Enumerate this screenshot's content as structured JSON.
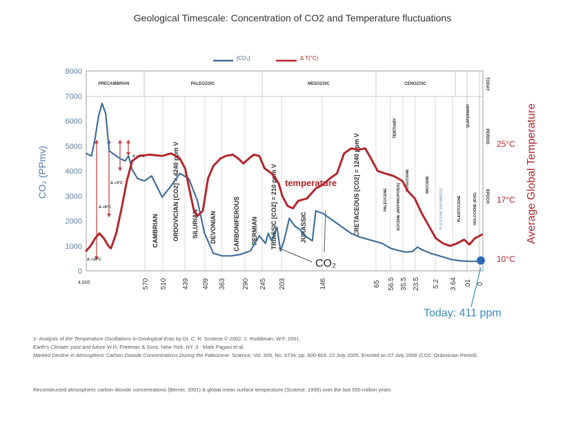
{
  "chart_data": {
    "type": "line",
    "title": "Geological Timescale: Concentration of CO2 and Temperature fluctuations",
    "ylabel_left": "CO₂ (PPmv)",
    "ylabel_right": "Average Global Temperature",
    "ylim_left": [
      0,
      8000
    ],
    "left_ticks": [
      "0",
      "1000",
      "2000",
      "3000",
      "4000",
      "5000",
      "6000",
      "7000",
      "8000"
    ],
    "right_ticks": [
      "25°C",
      "17°C",
      "10°C"
    ],
    "x_ticks": [
      "570",
      "510",
      "439",
      "409",
      "363",
      "290",
      "245",
      "203",
      "146",
      "65",
      "56.5",
      "35.5",
      "23.5",
      "5.2",
      "3.64",
      ".01",
      "0"
    ],
    "x_left_label": "4,600",
    "legend": [
      {
        "name": "[CO₂]",
        "color": "#3f6e9a"
      },
      {
        "name": "Δ T(°C)",
        "color": "#b2252a"
      }
    ],
    "eras": [
      "PRECAMBRIAN",
      "PALEOZOIC",
      "MESOZOIC",
      "CENOZOIC"
    ],
    "today_label": "TODAY",
    "right_header_labels": [
      "PERIOD",
      "EPOCH"
    ],
    "periods": [
      "CAMBRIAN",
      "ORDOVICIAN [CO2] = 4240 ppm V",
      "SILURIAN",
      "DEVONIAN",
      "CARBONIFEROUS",
      "PERMIAN",
      "TRIASSIC [CO2] = 210 ppm V",
      "JURASSIC",
      "CRETACEOUS [CO2] = 1240 ppm V",
      "TERTIARY",
      "QUATERNARY"
    ],
    "epochs": [
      "PALEOCENE",
      "EOCENE (ANTHROPOIDS)",
      "OLIGOCENE",
      "MIOCENE",
      "PLIOCENE (HOMINIDS)",
      "PLEISTOCENE",
      "HOLOCENE (EVE)"
    ],
    "precambrian_annotations": [
      "Δ +1°C",
      "Δ +3°C",
      "Δ +8°C",
      "Δ +10°C"
    ],
    "temperature_label": "temperature",
    "co2_label": "CO₂",
    "today_callout": "Today: 411 ppm",
    "series": [
      {
        "name": "[CO₂]",
        "color": "#3f6e9a",
        "points": [
          [
            0.0,
            4700
          ],
          [
            0.06,
            4600
          ],
          [
            0.1,
            5300
          ],
          [
            0.14,
            6200
          ],
          [
            0.18,
            6700
          ],
          [
            0.22,
            6300
          ],
          [
            0.26,
            4800
          ],
          [
            0.32,
            4650
          ],
          [
            0.38,
            4500
          ],
          [
            0.44,
            4400
          ],
          [
            0.48,
            4600
          ],
          [
            0.52,
            4050
          ],
          [
            0.58,
            3700
          ],
          [
            0.66,
            3600
          ],
          [
            0.74,
            3800
          ],
          [
            0.86,
            2950
          ],
          [
            0.96,
            3400
          ],
          [
            1.06,
            3900
          ],
          [
            1.16,
            3700
          ],
          [
            1.26,
            2800
          ],
          [
            1.34,
            1500
          ],
          [
            1.44,
            700
          ],
          [
            1.54,
            600
          ],
          [
            1.64,
            600
          ],
          [
            1.74,
            650
          ],
          [
            1.86,
            800
          ],
          [
            1.96,
            1400
          ],
          [
            2.03,
            1100
          ],
          [
            2.06,
            1500
          ],
          [
            2.1,
            1200
          ],
          [
            2.16,
            1750
          ],
          [
            2.2,
            800
          ],
          [
            2.24,
            1200
          ],
          [
            2.3,
            2100
          ],
          [
            2.36,
            1800
          ],
          [
            2.42,
            1650
          ],
          [
            2.48,
            1400
          ],
          [
            2.56,
            1200
          ],
          [
            2.6,
            2400
          ],
          [
            2.68,
            2300
          ],
          [
            2.78,
            2050
          ],
          [
            2.88,
            1800
          ],
          [
            3.0,
            1500
          ],
          [
            3.1,
            1350
          ],
          [
            3.2,
            1250
          ],
          [
            3.35,
            1100
          ],
          [
            3.45,
            900
          ],
          [
            3.55,
            800
          ],
          [
            3.62,
            750
          ],
          [
            3.7,
            780
          ],
          [
            3.75,
            950
          ],
          [
            3.8,
            850
          ],
          [
            3.9,
            700
          ],
          [
            4.0,
            600
          ],
          [
            4.14,
            450
          ],
          [
            4.24,
            400
          ],
          [
            4.34,
            380
          ],
          [
            4.44,
            380
          ],
          [
            4.48,
            400
          ]
        ]
      },
      {
        "name": "Δ T(°C)",
        "color": "#b2252a",
        "points": [
          [
            0.0,
            800
          ],
          [
            0.05,
            1000
          ],
          [
            0.1,
            1300
          ],
          [
            0.15,
            1500
          ],
          [
            0.2,
            1300
          ],
          [
            0.25,
            1000
          ],
          [
            0.28,
            900
          ],
          [
            0.34,
            1500
          ],
          [
            0.4,
            2500
          ],
          [
            0.46,
            3600
          ],
          [
            0.52,
            4400
          ],
          [
            0.6,
            4600
          ],
          [
            0.72,
            4650
          ],
          [
            0.86,
            4600
          ],
          [
            0.96,
            4700
          ],
          [
            1.06,
            4500
          ],
          [
            1.12,
            4100
          ],
          [
            1.16,
            3400
          ],
          [
            1.22,
            2400
          ],
          [
            1.26,
            2200
          ],
          [
            1.32,
            2400
          ],
          [
            1.38,
            3700
          ],
          [
            1.44,
            4200
          ],
          [
            1.52,
            4500
          ],
          [
            1.58,
            4600
          ],
          [
            1.66,
            4650
          ],
          [
            1.72,
            4500
          ],
          [
            1.78,
            4300
          ],
          [
            1.86,
            4550
          ],
          [
            1.9,
            4650
          ],
          [
            1.96,
            4600
          ],
          [
            2.02,
            4100
          ],
          [
            2.1,
            3900
          ],
          [
            2.18,
            3500
          ],
          [
            2.22,
            3000
          ],
          [
            2.28,
            2600
          ],
          [
            2.34,
            2500
          ],
          [
            2.4,
            2800
          ],
          [
            2.5,
            2900
          ],
          [
            2.6,
            3300
          ],
          [
            2.68,
            3450
          ],
          [
            2.76,
            3700
          ],
          [
            2.84,
            3900
          ],
          [
            2.92,
            4700
          ],
          [
            3.0,
            4900
          ],
          [
            3.08,
            4850
          ],
          [
            3.16,
            4900
          ],
          [
            3.24,
            4400
          ],
          [
            3.3,
            4000
          ],
          [
            3.38,
            3900
          ],
          [
            3.48,
            3800
          ],
          [
            3.58,
            3600
          ],
          [
            3.64,
            3200
          ],
          [
            3.72,
            2900
          ],
          [
            3.8,
            2300
          ],
          [
            3.88,
            1800
          ],
          [
            3.96,
            1300
          ],
          [
            4.04,
            1100
          ],
          [
            4.12,
            1000
          ],
          [
            4.2,
            1100
          ],
          [
            4.28,
            1250
          ],
          [
            4.34,
            1050
          ],
          [
            4.4,
            1300
          ],
          [
            4.48,
            1450
          ]
        ]
      }
    ]
  },
  "references": {
    "line1_a": "1- Analysis of the Temperature Oscillations in Geological Eras",
    "line1_b": " by Dr. C. R. Scotese © 2002. 2. Ruddiman, W.F. 2001.",
    "line2_a": "Earth's Climate: past and future",
    "line2_b": " W.H. Freeman & Sons. New York, NY. 3 - Mark Pagani et al.",
    "line3": "Marked Decline in Atmospheric Carbon Dioxide Concentrations During the Paleocene.",
    "line3_b": " Science; Vol. 309, No. 5734; pp. 600-603. 22 July 2005. Erected on 07 July 2008 (CO2: Ordovician Period).",
    "caption": "Reconstructed atmospheric carbon dioxide concentrations (Berner, 2001) & global mean surface temperature (Scotese, 1999) over the last 550 million years"
  }
}
